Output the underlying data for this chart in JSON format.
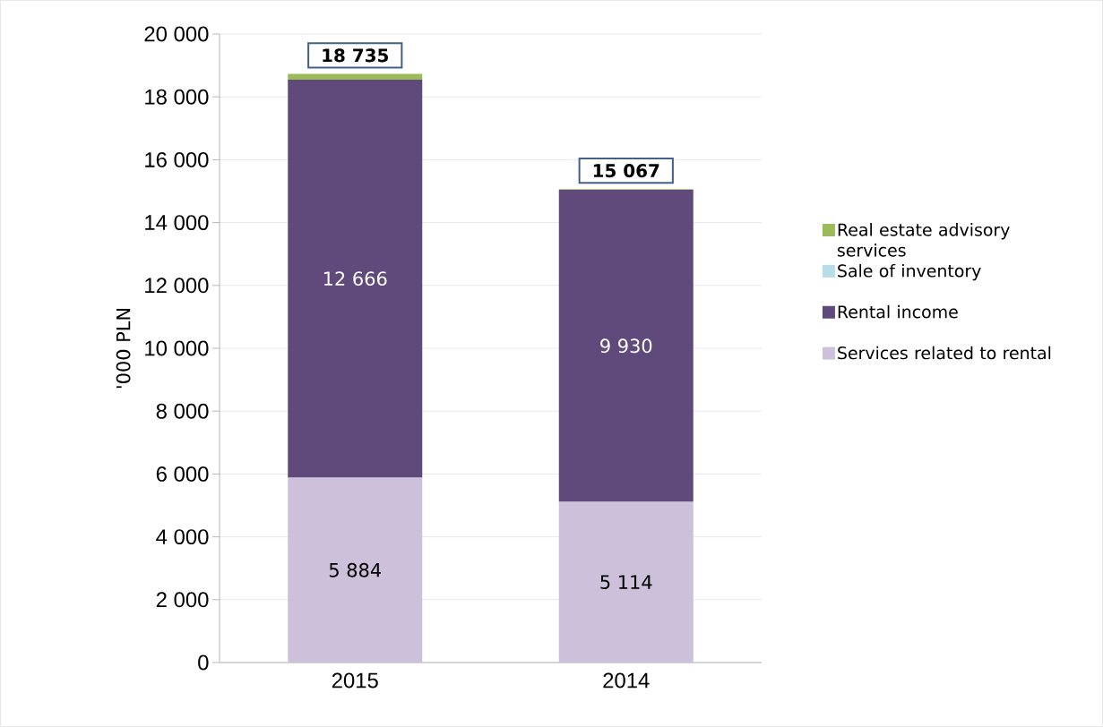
{
  "chart_data": {
    "type": "bar",
    "stacked": true,
    "ylabel": "'000 PLN",
    "categories": [
      "2015",
      "2014"
    ],
    "series": [
      {
        "name": "Services related to rental",
        "color": "#ccc0da",
        "values": [
          5884,
          5114
        ],
        "value_labels": [
          "5 884",
          "5 114"
        ]
      },
      {
        "name": "Rental income",
        "color": "#604a7b",
        "values": [
          12666,
          9930
        ],
        "value_labels": [
          "12 666",
          "9 930"
        ]
      },
      {
        "name": "Sale of inventory",
        "color": "#b7dee8",
        "values": [
          0,
          0
        ]
      },
      {
        "name": "Real estate advisory services",
        "color": "#9bbb59",
        "values": [
          185,
          23
        ]
      }
    ],
    "totals": [
      "18 735",
      "15 067"
    ],
    "ylim": [
      0,
      20000
    ],
    "yticks": [
      {
        "value": 0,
        "label": "0"
      },
      {
        "value": 2000,
        "label": "2 000"
      },
      {
        "value": 4000,
        "label": "4 000"
      },
      {
        "value": 6000,
        "label": "6 000"
      },
      {
        "value": 8000,
        "label": "8 000"
      },
      {
        "value": 10000,
        "label": "10 000"
      },
      {
        "value": 12000,
        "label": "12 000"
      },
      {
        "value": 14000,
        "label": "14 000"
      },
      {
        "value": 16000,
        "label": "16 000"
      },
      {
        "value": 18000,
        "label": "18 000"
      },
      {
        "value": 20000,
        "label": "20 000"
      }
    ],
    "grid": "y",
    "legend": "right"
  }
}
